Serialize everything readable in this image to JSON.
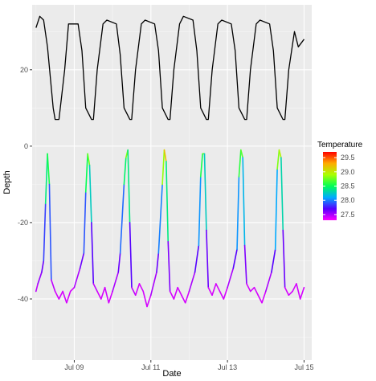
{
  "chart_data": {
    "type": "line",
    "xlabel": "Date",
    "ylabel": "Depth",
    "x_tick_labels": [
      "Jul 09",
      "Jul 11",
      "Jul 13",
      "Jul 15"
    ],
    "x_tick_dates": [
      9,
      11,
      13,
      15
    ],
    "xlim": [
      7.9,
      15.2
    ],
    "y_tick_labels": [
      "20",
      "0",
      "-20",
      "-40"
    ],
    "y_tick_values": [
      20,
      0,
      -20,
      -40
    ],
    "ylim": [
      -56,
      37
    ],
    "grid": true,
    "panel_background": "#ebebeb",
    "legend": {
      "title": "Temperature",
      "placement": "right",
      "labels": [
        "29.5",
        "29.0",
        "28.5",
        "28.0",
        "27.5"
      ],
      "values": [
        29.5,
        29.0,
        28.5,
        28.0,
        27.5
      ],
      "range": [
        27.3,
        29.7
      ],
      "colors": [
        "#ff0000",
        "#ffaa00",
        "#aaff00",
        "#00ff55",
        "#00aaff",
        "#5500ff",
        "#ff00ff"
      ]
    },
    "series": [
      {
        "style": "black",
        "x": [
          8.0,
          8.1,
          8.2,
          8.3,
          8.45,
          8.5,
          8.6,
          8.75,
          8.85,
          9.1,
          9.2,
          9.3,
          9.45,
          9.5,
          9.6,
          9.75,
          9.85,
          10.1,
          10.2,
          10.3,
          10.45,
          10.5,
          10.6,
          10.75,
          10.85,
          11.1,
          11.2,
          11.3,
          11.45,
          11.5,
          11.6,
          11.75,
          11.85,
          12.1,
          12.2,
          12.3,
          12.45,
          12.5,
          12.6,
          12.75,
          12.85,
          13.1,
          13.2,
          13.3,
          13.45,
          13.5,
          13.6,
          13.75,
          13.85,
          14.1,
          14.2,
          14.3,
          14.45,
          14.5,
          14.6,
          14.75,
          14.85,
          15.0
        ],
        "y": [
          31,
          34,
          33,
          26,
          10,
          7,
          7,
          20,
          32,
          32,
          25,
          10,
          7,
          7,
          20,
          32,
          33,
          32,
          24,
          10,
          7,
          7,
          20,
          32,
          33,
          32,
          25,
          10,
          7,
          7,
          20,
          32,
          34,
          33,
          25,
          10,
          7,
          7,
          20,
          32,
          33,
          32,
          25,
          10,
          7,
          7,
          20,
          32,
          33,
          32,
          25,
          10,
          7,
          7,
          20,
          30,
          26,
          28
        ]
      },
      {
        "style": "temperature",
        "x": [
          8.0,
          8.05,
          8.15,
          8.2,
          8.25,
          8.3,
          8.35,
          8.4,
          8.5,
          8.6,
          8.7,
          8.8,
          8.9,
          9.0,
          9.15,
          9.25,
          9.3,
          9.35,
          9.4,
          9.45,
          9.5,
          9.6,
          9.7,
          9.8,
          9.9,
          10.0,
          10.15,
          10.2,
          10.3,
          10.35,
          10.4,
          10.45,
          10.5,
          10.6,
          10.7,
          10.8,
          10.9,
          11.0,
          11.15,
          11.2,
          11.3,
          11.35,
          11.4,
          11.45,
          11.5,
          11.6,
          11.7,
          11.8,
          11.9,
          12.0,
          12.15,
          12.25,
          12.3,
          12.35,
          12.4,
          12.45,
          12.5,
          12.6,
          12.7,
          12.8,
          12.9,
          13.0,
          13.15,
          13.25,
          13.3,
          13.35,
          13.4,
          13.45,
          13.5,
          13.6,
          13.7,
          13.8,
          13.9,
          14.0,
          14.15,
          14.25,
          14.3,
          14.35,
          14.4,
          14.45,
          14.5,
          14.6,
          14.7,
          14.8,
          14.9,
          15.0
        ],
        "y": [
          -38,
          -36,
          -33,
          -30,
          -15,
          -2,
          -10,
          -35,
          -38,
          -40,
          -38,
          -41,
          -38,
          -37,
          -32,
          -28,
          -12,
          -2,
          -5,
          -20,
          -36,
          -38,
          -40,
          -37,
          -41,
          -38,
          -33,
          -28,
          -10,
          -3,
          -1,
          -20,
          -37,
          -39,
          -36,
          -38,
          -42,
          -39,
          -33,
          -28,
          -10,
          -1,
          -4,
          -25,
          -38,
          -40,
          -37,
          -39,
          -41,
          -38,
          -33,
          -26,
          -8,
          -2,
          -2,
          -22,
          -37,
          -39,
          -36,
          -38,
          -40,
          -37,
          -32,
          -27,
          -8,
          -1,
          -3,
          -26,
          -36,
          -38,
          -37,
          -39,
          -41,
          -38,
          -33,
          -27,
          -6,
          -1,
          -3,
          -22,
          -37,
          -39,
          -38,
          -36,
          -40,
          -37
        ],
        "temperature": [
          27.4,
          27.5,
          27.6,
          27.7,
          28.0,
          28.8,
          28.3,
          27.5,
          27.4,
          27.4,
          27.4,
          27.4,
          27.4,
          27.4,
          27.6,
          27.7,
          28.1,
          28.9,
          28.6,
          27.9,
          27.5,
          27.4,
          27.4,
          27.4,
          27.4,
          27.4,
          27.6,
          27.7,
          28.2,
          28.7,
          28.9,
          27.9,
          27.5,
          27.4,
          27.4,
          27.4,
          27.4,
          27.4,
          27.6,
          27.7,
          28.3,
          29.4,
          29.0,
          27.8,
          27.4,
          27.4,
          27.4,
          27.4,
          27.4,
          27.4,
          27.6,
          27.8,
          28.3,
          28.8,
          28.6,
          27.9,
          27.4,
          27.4,
          27.4,
          27.4,
          27.4,
          27.4,
          27.6,
          27.8,
          28.3,
          28.9,
          28.5,
          27.8,
          27.4,
          27.4,
          27.4,
          27.4,
          27.4,
          27.4,
          27.6,
          27.8,
          28.4,
          29.2,
          28.7,
          27.9,
          27.4,
          27.4,
          27.4,
          27.4,
          27.4,
          27.4
        ]
      }
    ]
  }
}
